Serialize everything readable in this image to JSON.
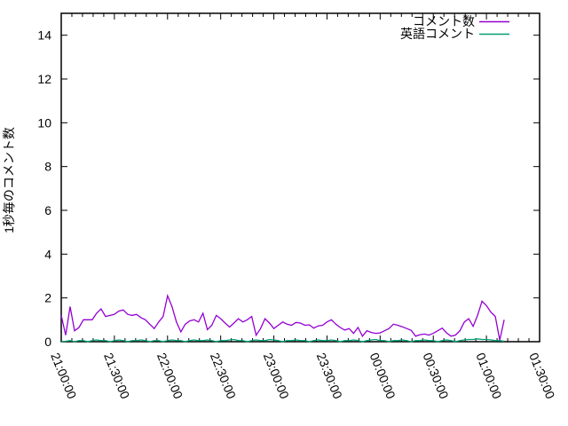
{
  "chart_data": {
    "type": "line",
    "title": "",
    "xlabel": "",
    "ylabel": "1秒毎のコメント数",
    "x_tick_labels": [
      "21:00:00",
      "21:30:00",
      "22:00:00",
      "22:30:00",
      "23:00:00",
      "23:30:00",
      "00:00:00",
      "00:30:00",
      "01:00:00",
      "01:30:00"
    ],
    "y_ticks": [
      0,
      2,
      4,
      6,
      8,
      10,
      12,
      14
    ],
    "ylim": [
      0,
      15
    ],
    "x_range_minutes": 270,
    "x_major_tick_minutes": 30,
    "x_minor_tick_minutes": 6,
    "sample_interval_minutes": 2.5,
    "x_start_label": "21:00:00",
    "grid": false,
    "legend_position": "top-right-inside",
    "axis_color": "#000000",
    "background_color": "#ffffff",
    "series": [
      {
        "name": "コメント数",
        "color": "#9400d3",
        "values": [
          1.2,
          0.3,
          1.6,
          0.5,
          0.65,
          1.0,
          1.0,
          1.0,
          1.3,
          1.5,
          1.15,
          1.2,
          1.25,
          1.4,
          1.45,
          1.25,
          1.2,
          1.25,
          1.1,
          1.0,
          0.8,
          0.6,
          0.9,
          1.15,
          2.1,
          1.6,
          0.9,
          0.45,
          0.8,
          0.95,
          1.0,
          0.9,
          1.3,
          0.55,
          0.75,
          1.2,
          1.05,
          0.85,
          0.67,
          0.85,
          1.05,
          0.9,
          1.0,
          1.15,
          0.3,
          0.6,
          1.05,
          0.85,
          0.6,
          0.75,
          0.9,
          0.8,
          0.75,
          0.88,
          0.85,
          0.75,
          0.77,
          0.62,
          0.72,
          0.75,
          0.9,
          1.0,
          0.8,
          0.65,
          0.53,
          0.6,
          0.38,
          0.65,
          0.25,
          0.5,
          0.42,
          0.38,
          0.4,
          0.5,
          0.6,
          0.8,
          0.75,
          0.68,
          0.6,
          0.52,
          0.25,
          0.32,
          0.35,
          0.3,
          0.38,
          0.5,
          0.62,
          0.4,
          0.25,
          0.3,
          0.5,
          0.9,
          1.05,
          0.7,
          1.2,
          1.85,
          1.65,
          1.35,
          1.15,
          0.07,
          1.0
        ]
      },
      {
        "name": "英語コメント",
        "color": "#009e73",
        "values": [
          0,
          0.02,
          0.05,
          0,
          0.05,
          0.05,
          0,
          0.05,
          0.08,
          0.05,
          0.05,
          0,
          0.05,
          0.08,
          0.05,
          0,
          0.05,
          0.05,
          0.08,
          0.05,
          0,
          0.05,
          0.05,
          0,
          0.05,
          0.08,
          0.05,
          0.05,
          0,
          0.05,
          0.08,
          0.05,
          0.05,
          0.08,
          0.05,
          0,
          0.05,
          0.05,
          0.08,
          0.1,
          0.05,
          0.05,
          0,
          0.05,
          0.08,
          0.05,
          0.05,
          0.1,
          0.08,
          0.05,
          0,
          0.05,
          0.05,
          0.08,
          0.05,
          0.05,
          0,
          0.05,
          0.08,
          0.05,
          0.05,
          0.08,
          0.05,
          0,
          0.05,
          0.05,
          0.08,
          0.05,
          0,
          0.05,
          0.08,
          0.1,
          0.05,
          0.05,
          0,
          0.05,
          0.05,
          0.08,
          0.05,
          0,
          0.05,
          0.05,
          0.08,
          0.05,
          0.05,
          0,
          0.05,
          0.08,
          0.05,
          0,
          0.05,
          0.08,
          0.1,
          0.1,
          0.13,
          0.1,
          0.1,
          0.08,
          0.05,
          0.05,
          0.02
        ]
      }
    ]
  }
}
